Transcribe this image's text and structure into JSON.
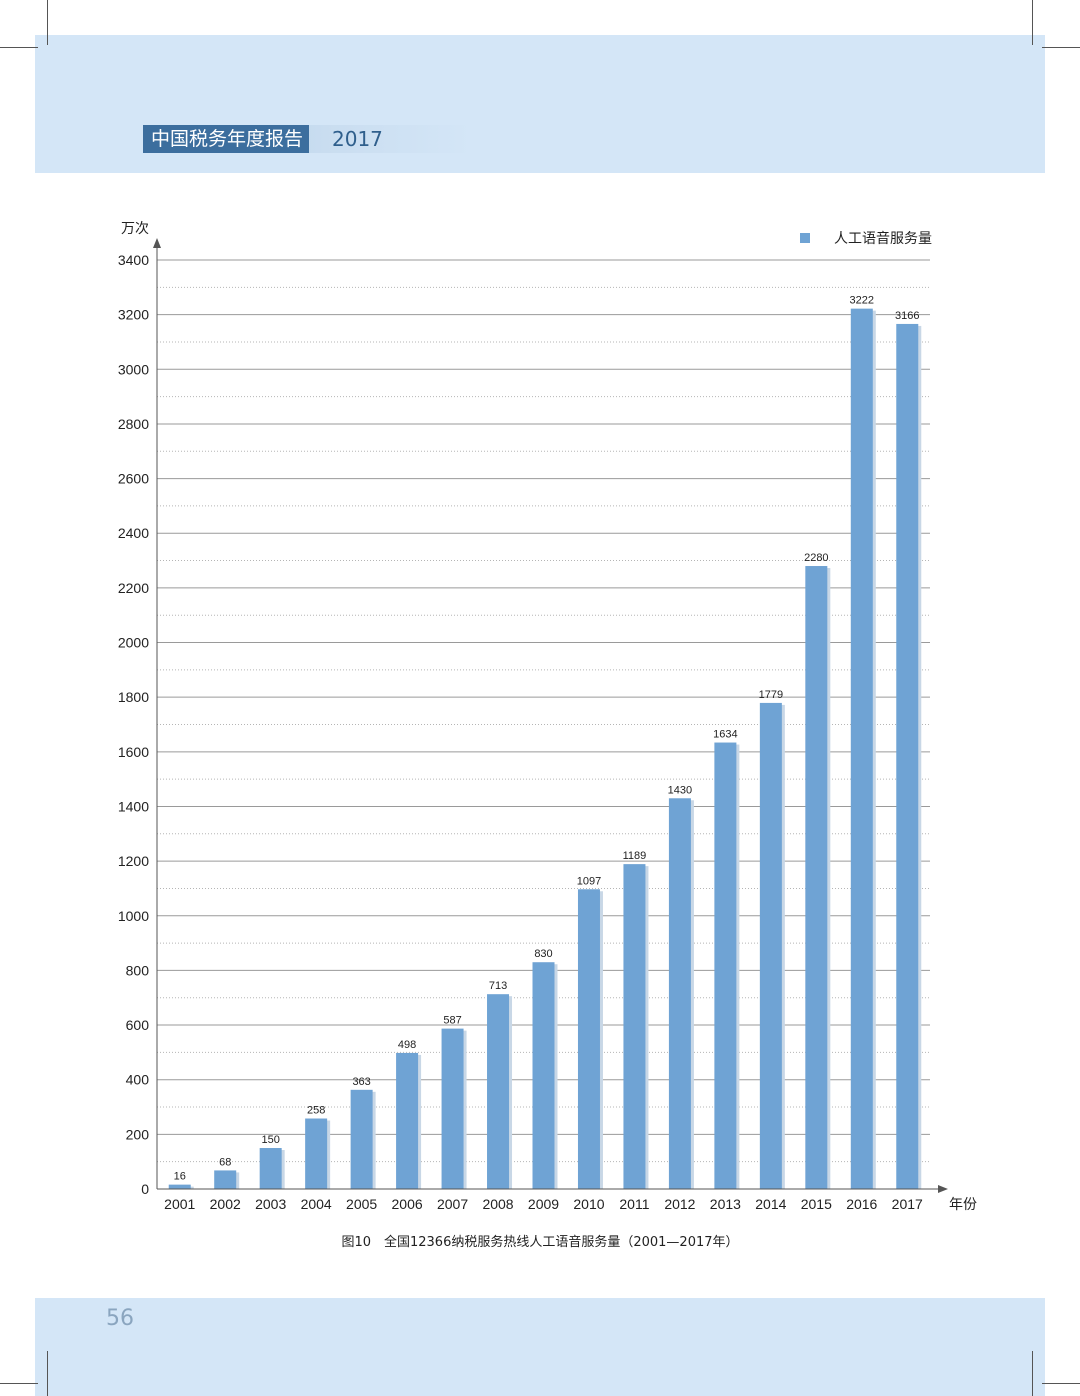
{
  "header": {
    "title": "中国税务年度报告",
    "year": "2017"
  },
  "page_number": "56",
  "caption": "图10　全国12366纳税服务热线人工语音服务量（2001—2017年）",
  "colors": {
    "bar": "#6fa3d4",
    "bar_shadow": "#c8d7e6",
    "band": "#d4e6f7",
    "header_dark": "#3c6e9e"
  },
  "chart_data": {
    "type": "bar",
    "title": "",
    "ylabel": "万次",
    "xlabel": "年份",
    "ylim": [
      0,
      3400
    ],
    "yticks": [
      0,
      200,
      400,
      600,
      800,
      1000,
      1200,
      1400,
      1600,
      1800,
      2000,
      2200,
      2400,
      2600,
      2800,
      3000,
      3200,
      3400
    ],
    "grid": true,
    "legend_position": "top-right",
    "categories": [
      "2001",
      "2002",
      "2003",
      "2004",
      "2005",
      "2006",
      "2007",
      "2008",
      "2009",
      "2010",
      "2011",
      "2012",
      "2013",
      "2014",
      "2015",
      "2016",
      "2017"
    ],
    "series": [
      {
        "name": "人工语音服务量",
        "values": [
          16,
          68,
          150,
          258,
          363,
          498,
          587,
          713,
          830,
          1097,
          1189,
          1430,
          1634,
          1779,
          2280,
          3222,
          3166
        ]
      }
    ]
  }
}
